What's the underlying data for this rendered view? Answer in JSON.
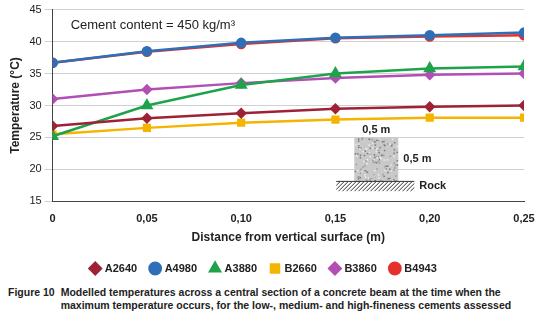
{
  "chart_data": {
    "type": "line",
    "title": "Cement content = 450 kg/m³",
    "x_label": "Distance from vertical surface (m)",
    "y_label": "Temperature (°C)",
    "x": [
      0,
      0.05,
      0.1,
      0.15,
      0.2,
      0.25
    ],
    "xlim": [
      0,
      0.25
    ],
    "xticks": [
      0,
      {
        "value": 0.05,
        "label": "0,05"
      },
      {
        "value": 0.1,
        "label": "0,10"
      },
      {
        "value": 0.15,
        "label": "0,15"
      },
      {
        "value": 0.2,
        "label": "0,20"
      },
      {
        "value": 0.25,
        "label": "0,25"
      }
    ],
    "ylim": [
      15,
      45
    ],
    "yticks": [
      15,
      20,
      25,
      30,
      35,
      40,
      45
    ],
    "grid": true,
    "legend": "bottom",
    "series": [
      {
        "name": "A2640",
        "color": "#9e2236",
        "marker": "diamond",
        "values": [
          26.8,
          28.0,
          28.8,
          29.5,
          29.8,
          30.0
        ]
      },
      {
        "name": "A4980",
        "color": "#2e6fb7",
        "marker": "circle",
        "values": [
          36.7,
          38.5,
          39.8,
          40.6,
          41.0,
          41.4
        ]
      },
      {
        "name": "A3880",
        "color": "#1fa34a",
        "marker": "triangle",
        "values": [
          25.2,
          30.0,
          33.2,
          35.0,
          35.8,
          36.1
        ]
      },
      {
        "name": "B2660",
        "color": "#f4b400",
        "marker": "square",
        "values": [
          25.5,
          26.5,
          27.3,
          27.8,
          28.1,
          28.1
        ]
      },
      {
        "name": "B3860",
        "color": "#b24fb5",
        "marker": "diamond",
        "values": [
          31.0,
          32.5,
          33.5,
          34.3,
          34.8,
          35.0
        ]
      },
      {
        "name": "B4943",
        "color": "#e4312b",
        "marker": "circle",
        "values": [
          36.7,
          38.4,
          39.6,
          40.5,
          40.8,
          41.0
        ]
      }
    ],
    "inset": {
      "width_label": "0,5 m",
      "height_label": "0,5 m",
      "base_label": "Rock"
    }
  },
  "caption": {
    "label": "Figure 10",
    "text": "Modelled temperatures across a central section of a concrete beam at the time when the maximum temperature occurs, for the low-, medium- and high-fineness cements assessed"
  }
}
